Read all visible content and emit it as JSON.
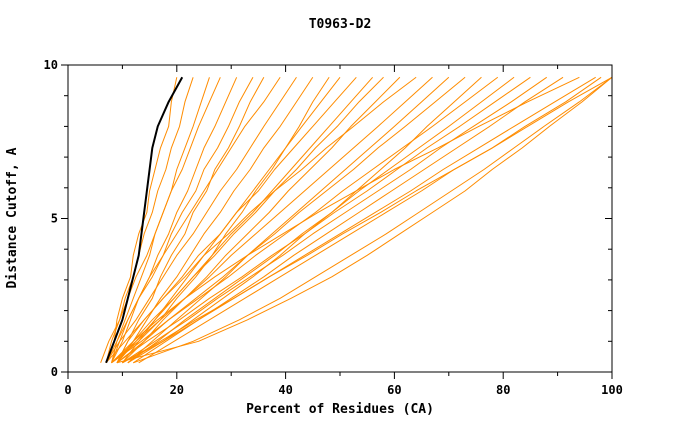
{
  "title": "T0963-D2",
  "chart_data": {
    "type": "line",
    "title": "T0963-D2",
    "xlabel": "Percent of Residues (CA)",
    "ylabel": "Distance Cutoff, A",
    "xlim": [
      0,
      100
    ],
    "ylim": [
      0,
      10
    ],
    "x_ticks_labeled": [
      0,
      20,
      40,
      60,
      80,
      100
    ],
    "x_ticks_minor": [
      10,
      30,
      50,
      70,
      90
    ],
    "y_ticks_labeled": [
      0,
      5,
      10
    ],
    "y_ticks_minor": [
      1,
      2,
      3,
      4,
      6,
      7,
      8,
      9
    ],
    "grid": false,
    "legend": "none",
    "colors": {
      "models": "#ff8c00",
      "highlight": "#000000",
      "axis": "#000000"
    },
    "y_grid": [
      0.3,
      1.0,
      1.7,
      2.4,
      3.1,
      3.8,
      4.5,
      5.2,
      5.9,
      6.6,
      7.3,
      8.0,
      8.8,
      9.6
    ],
    "series": [
      [
        7,
        8.5,
        9,
        10,
        11.5,
        12,
        13,
        14.5,
        15,
        16,
        17,
        18.5,
        19,
        20
      ],
      [
        7,
        8,
        9.5,
        10.5,
        12,
        13,
        14,
        15.5,
        16.5,
        18,
        19,
        20.5,
        21.5,
        23
      ],
      [
        8,
        9,
        10.5,
        12,
        13.5,
        15,
        16,
        17.5,
        19,
        20,
        21.5,
        23,
        24.5,
        26
      ],
      [
        6,
        7.5,
        9.5,
        11,
        12.5,
        14.5,
        16,
        17.5,
        19,
        21,
        22.5,
        24,
        26,
        28
      ],
      [
        8,
        10,
        11.5,
        13,
        15,
        16.5,
        18.5,
        20,
        22,
        23.5,
        25,
        27,
        29,
        31
      ],
      [
        7,
        9,
        11,
        13,
        15,
        17.5,
        19,
        21,
        23.5,
        25,
        27.5,
        29.5,
        31.5,
        34
      ],
      [
        9,
        11,
        13,
        15.5,
        17,
        19,
        21.5,
        23,
        25.5,
        27,
        29.5,
        31.5,
        33.5,
        36
      ],
      [
        8,
        9.5,
        11,
        13,
        15.5,
        17.5,
        20,
        22.5,
        25,
        27.5,
        30,
        32.5,
        36,
        39
      ],
      [
        7,
        9.5,
        12.5,
        15,
        17.5,
        20,
        23,
        25.5,
        28,
        31,
        33.5,
        36,
        39,
        42
      ],
      [
        9,
        12,
        14.5,
        17,
        20,
        22.5,
        25,
        28,
        30.5,
        33.5,
        36,
        39,
        42,
        45
      ],
      [
        8,
        13,
        17,
        20,
        23.5,
        26.5,
        29,
        32,
        34.5,
        37.5,
        40,
        42.5,
        45,
        48
      ],
      [
        10,
        13,
        16,
        19,
        22,
        25,
        28,
        31,
        34,
        37,
        40,
        43,
        46.5,
        50
      ],
      [
        7,
        10.5,
        14,
        17.5,
        21,
        24,
        28,
        31,
        35,
        38,
        41.5,
        45,
        49,
        53
      ],
      [
        9,
        12.5,
        16,
        19.5,
        23,
        26.5,
        30,
        34,
        37.5,
        41,
        44.5,
        48,
        52,
        56
      ],
      [
        8,
        12,
        15.5,
        19.5,
        23,
        27,
        30.5,
        34.5,
        38,
        42,
        45.5,
        49.5,
        53.5,
        58
      ],
      [
        10,
        14,
        17.5,
        21.5,
        25.5,
        29,
        33,
        37,
        40.5,
        44.5,
        48.5,
        52,
        56.5,
        61
      ],
      [
        9,
        11,
        14,
        17.5,
        21.5,
        25,
        29.5,
        33.5,
        38,
        43,
        47.5,
        52.5,
        58,
        64
      ],
      [
        8,
        12.5,
        17,
        21.5,
        26,
        30,
        34.5,
        39,
        43.5,
        48,
        52.5,
        57,
        62,
        67
      ],
      [
        11,
        15.5,
        20,
        24.5,
        29,
        33,
        37.5,
        42,
        46.5,
        51,
        55.5,
        60,
        65,
        70
      ],
      [
        9,
        14,
        18.5,
        23.5,
        28.5,
        33,
        38,
        42.5,
        47.5,
        52.5,
        57,
        62,
        67.5,
        73
      ],
      [
        10,
        17.5,
        23,
        28.5,
        34,
        39,
        43.5,
        48.5,
        53,
        57.5,
        62,
        66,
        71,
        76
      ],
      [
        8,
        13.5,
        18.5,
        24,
        29.5,
        34.5,
        40,
        45.5,
        50.5,
        56,
        61.5,
        67,
        73,
        79
      ],
      [
        11,
        16.5,
        21.5,
        27,
        32.5,
        38,
        43,
        48.5,
        53.5,
        59,
        64.5,
        70,
        76,
        82
      ],
      [
        9,
        14.5,
        20.5,
        26,
        32,
        37.5,
        43.5,
        49,
        55,
        60.5,
        66,
        72,
        78.5,
        85
      ],
      [
        10,
        16,
        22,
        27.5,
        33.5,
        39.5,
        45,
        51,
        57,
        63,
        68.5,
        74.5,
        81.5,
        88
      ],
      [
        12,
        18,
        24,
        30,
        36,
        41.5,
        47.5,
        53.5,
        59.5,
        65.5,
        71.5,
        77.5,
        84,
        91
      ],
      [
        9,
        12,
        16.5,
        21.5,
        27,
        33,
        39.5,
        46,
        53,
        60,
        68,
        75.5,
        84.5,
        94
      ],
      [
        11,
        17.5,
        24,
        30.5,
        37,
        43.5,
        50,
        56.5,
        63,
        69,
        75.5,
        82,
        89.5,
        97
      ],
      [
        10,
        17,
        23.5,
        30.5,
        37,
        44,
        50.5,
        57.5,
        64,
        71,
        78,
        84.5,
        92,
        100
      ],
      [
        12,
        23,
        31.5,
        39,
        45.5,
        52,
        58.5,
        64.5,
        70.5,
        76.5,
        82,
        87.5,
        94,
        100
      ],
      [
        9,
        24,
        33,
        41,
        48.5,
        55,
        61,
        67,
        73,
        78,
        83.5,
        88.5,
        94.5,
        100
      ],
      [
        13,
        19.5,
        26,
        32.5,
        39,
        45.5,
        52,
        58.5,
        65,
        71,
        78,
        84,
        91.5,
        98
      ]
    ],
    "highlight_series": [
      7,
      8.5,
      10,
      11,
      12,
      13,
      13.5,
      14,
      14.5,
      15,
      15.5,
      16.5,
      18.5,
      21
    ]
  }
}
